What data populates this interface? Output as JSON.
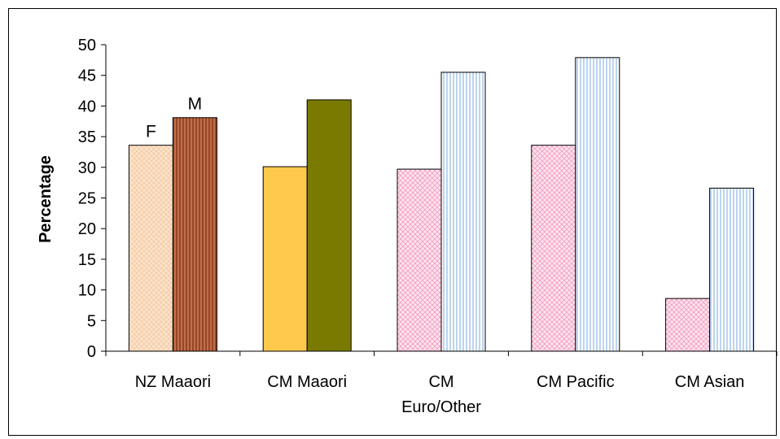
{
  "chart_data": {
    "type": "bar",
    "title": "",
    "xlabel": "",
    "ylabel": "Percentage",
    "ylim": [
      0,
      50
    ],
    "yticks": [
      0,
      5,
      10,
      15,
      20,
      25,
      30,
      35,
      40,
      45,
      50
    ],
    "grid": false,
    "legend": "none",
    "categories": [
      {
        "lines": [
          "NZ Maaori"
        ]
      },
      {
        "lines": [
          "CM Maaori"
        ]
      },
      {
        "lines": [
          "CM",
          "Euro/Other"
        ]
      },
      {
        "lines": [
          "CM Pacific"
        ]
      },
      {
        "lines": [
          "CM Asian"
        ]
      }
    ],
    "series": [
      {
        "name": "F",
        "values": [
          33.6,
          30.1,
          29.7,
          33.6,
          8.6
        ]
      },
      {
        "name": "M",
        "values": [
          38.1,
          41.0,
          45.5,
          47.9,
          26.6
        ]
      }
    ],
    "bar_styles": [
      [
        {
          "fill": "#fde4cc",
          "pattern": "crosshatch",
          "line": "#f2c7a0"
        },
        {
          "fill": "#c0704a",
          "pattern": "vstripe",
          "line": "#7a2a12"
        }
      ],
      [
        {
          "fill": "#ffc94d",
          "pattern": "solid"
        },
        {
          "fill": "#7a7a00",
          "pattern": "solid"
        }
      ],
      [
        {
          "fill": "#ffe4ee",
          "pattern": "crosshatch",
          "line": "#f29bc0"
        },
        {
          "fill": "#ffffff",
          "pattern": "vstripe",
          "line": "#8fb8e8"
        }
      ],
      [
        {
          "fill": "#ffe4ee",
          "pattern": "crosshatch",
          "line": "#f29bc0"
        },
        {
          "fill": "#ffffff",
          "pattern": "vstripe",
          "line": "#8fb8e8"
        }
      ],
      [
        {
          "fill": "#ffe4ee",
          "pattern": "crosshatch",
          "line": "#f29bc0"
        },
        {
          "fill": "#ffffff",
          "pattern": "vstripe",
          "line": "#8fb8e8"
        }
      ]
    ],
    "annotations": [
      {
        "text": "F",
        "category": 0,
        "series": 0
      },
      {
        "text": "M",
        "category": 0,
        "series": 1
      }
    ]
  }
}
